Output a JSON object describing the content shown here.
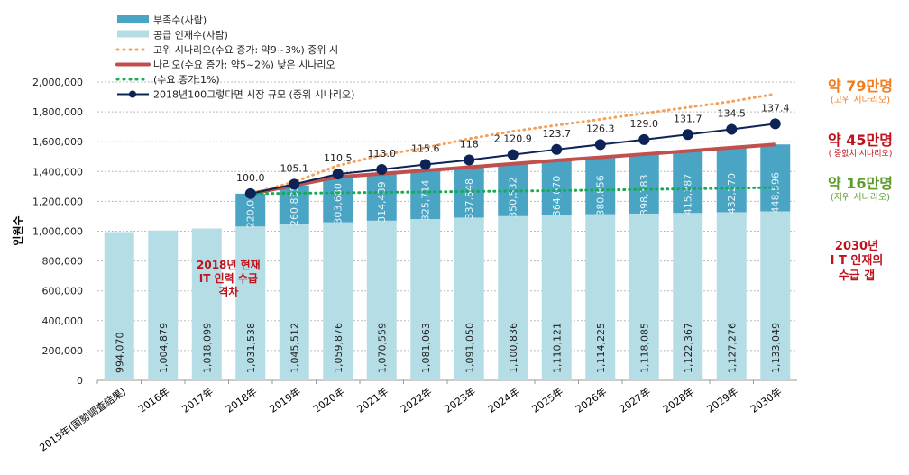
{
  "chart_data": {
    "type": "bar",
    "ylabel": "인원수",
    "ylim": [
      0,
      2000000
    ],
    "yticks": [
      "0",
      "200,000",
      "400,000",
      "600,000",
      "800,000",
      "1,000,000",
      "1,200,000",
      "1,400,000",
      "1,600,000",
      "1,800,000",
      "2,000,000"
    ],
    "grid": true,
    "legend_placement": "top-left",
    "categories": [
      "2015年(国勢調査結果)",
      "2016年",
      "2017年",
      "2018年",
      "2019年",
      "2020年",
      "2021年",
      "2022年",
      "2023年",
      "2024年",
      "2025年",
      "2026年",
      "2027年",
      "2028年",
      "2029年",
      "2030年"
    ],
    "series": [
      {
        "name": "공급 인재수(사람)",
        "kind": "bar",
        "color": "#b5dde6",
        "values": [
          994070,
          1004879,
          1018099,
          1031538,
          1045512,
          1059876,
          1070559,
          1081063,
          1091050,
          1100836,
          1110121,
          1114225,
          1118085,
          1122367,
          1127276,
          1133049
        ],
        "labels": [
          "994,070",
          "1,004,879",
          "1,018,099",
          "1,031,538",
          "1,045,512",
          "1,059,876",
          "1,070,559",
          "1,081,063",
          "1,091,050",
          "1,100,836",
          "1,110,121",
          "1,114,225",
          "1,118,085",
          "1,122,367",
          "1,127,276",
          "1,133,049"
        ]
      },
      {
        "name": "부족수(사람)",
        "kind": "bar",
        "color": "#4aa5c4",
        "values": [
          null,
          null,
          null,
          220000,
          260835,
          303680,
          314439,
          325714,
          337848,
          350532,
          364070,
          380856,
          398183,
          415387,
          432270,
          448596
        ],
        "labels": [
          "",
          "",
          "",
          "220,000",
          "260,835",
          "303,680",
          "314,439",
          "325,714",
          "337,848",
          "350,532",
          "364,070",
          "380,856",
          "398,183",
          "415,387",
          "432,270",
          "448,596"
        ]
      },
      {
        "name": "고위 시나리오(수요 증가: 약9~3%) 중위 시",
        "kind": "dotted-line",
        "color": "#f4a05a",
        "values": [
          null,
          null,
          null,
          1251538,
          1330000,
          1440000,
          1510000,
          1560000,
          1620000,
          1670000,
          1710000,
          1750000,
          1790000,
          1830000,
          1870000,
          1920000
        ]
      },
      {
        "name": "나리오(수요 증가: 약5~2%) 낮은 시나리오",
        "kind": "line",
        "color": "#c0504d",
        "values": [
          null,
          null,
          null,
          1251538,
          1306347,
          1363556,
          1384998,
          1406777,
          1428898,
          1451368,
          1474191,
          1495081,
          1516268,
          1537754,
          1559546,
          1581645
        ]
      },
      {
        "name": "(수요 증가:1%)",
        "kind": "dotted-line",
        "color": "#1aaa55",
        "values": [
          null,
          null,
          null,
          1251538,
          1254000,
          1257000,
          1260000,
          1263000,
          1266000,
          1269000,
          1272000,
          1276000,
          1280000,
          1284000,
          1288000,
          1293000
        ]
      },
      {
        "name": "2018년100그렇다면 시장 규모 (중위 시나리오)",
        "kind": "line-marker",
        "color": "#0d2356",
        "values": [
          null,
          null,
          null,
          1251538,
          1315000,
          1383000,
          1414000,
          1447000,
          1477000,
          1513000,
          1548000,
          1581000,
          1614000,
          1648000,
          1683000,
          1720000
        ],
        "labels": [
          "",
          "",
          "",
          "100.0",
          "105.1",
          "110.5",
          "113.0",
          "115.6",
          "118",
          "2 120.9",
          "123.7",
          "126.3",
          "129.0",
          "131.7",
          "134.5",
          "137.4"
        ]
      }
    ]
  },
  "annotations": {
    "gap2018": [
      "2018년 현재",
      "IT 인력 수급",
      "격차"
    ],
    "high": {
      "value": "약 79만명",
      "note": "(고위 시나리오)",
      "color": "#f07d1e"
    },
    "mid": {
      "value": "약 45만명",
      "note": "( 중핤치 시나리오)",
      "color": "#c0121c"
    },
    "low": {
      "value": "약 16만명",
      "note": "(저위 시나리오)",
      "color": "#5b9b2a"
    },
    "gap2030": [
      "2030년",
      "I T 인재의",
      "수급 갭"
    ]
  }
}
